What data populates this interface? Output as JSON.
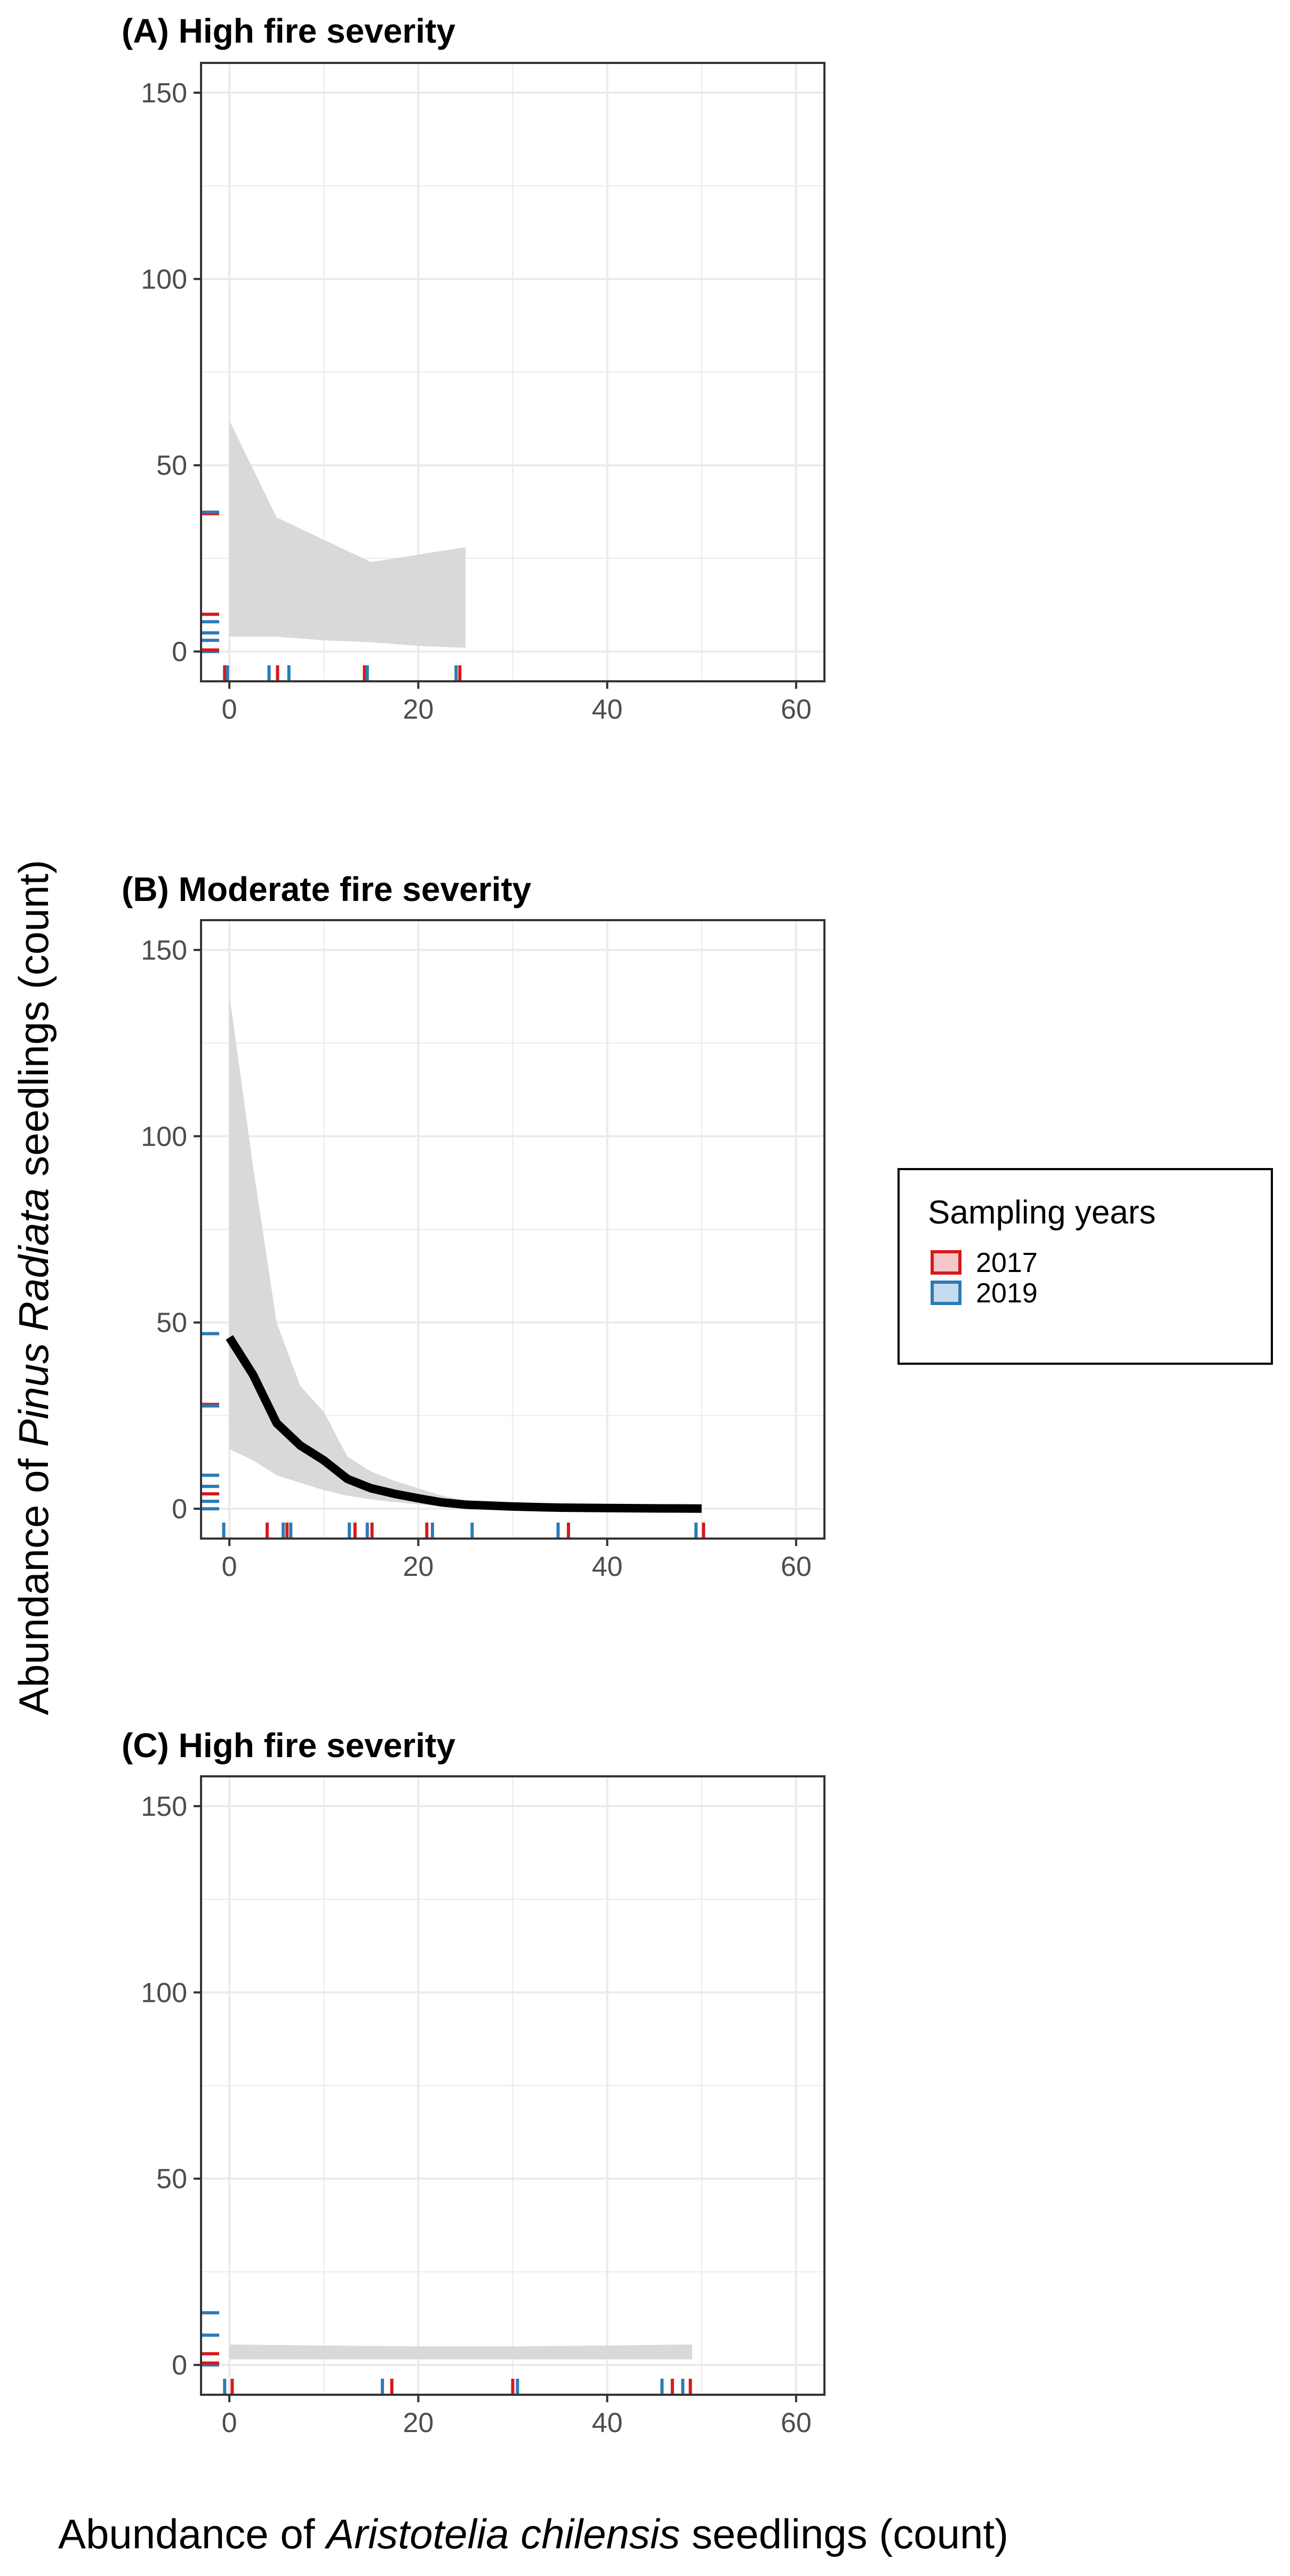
{
  "chart_data": {
    "type": "line",
    "y_axis_label": {
      "prefix": "Abundance of ",
      "italic": "Pinus Radiata",
      "suffix": " seedlings (count)"
    },
    "x_axis_label": {
      "prefix": "Abundance of ",
      "italic": "Aristotelia chilensis",
      "suffix": " seedlings (count)"
    },
    "legend": {
      "title": "Sampling years",
      "items": [
        {
          "label": "2017",
          "color": "#d7191c",
          "fill": "#f4c7c8"
        },
        {
          "label": "2019",
          "color": "#2c7bb6",
          "fill": "#c6dbef"
        }
      ]
    },
    "colors": {
      "fit_line": "#000000",
      "ribbon": "#d9d9d9",
      "grid": "#ebebeb",
      "panel_border": "#333333"
    },
    "xlim": [
      -3,
      63
    ],
    "ylim": [
      -8,
      158
    ],
    "x_ticks": [
      0,
      20,
      40,
      60
    ],
    "y_ticks": [
      0,
      50,
      100,
      150
    ],
    "panels": [
      {
        "title": "(A) High fire severity",
        "fit_line": null,
        "ribbon": {
          "x": [
            0,
            5,
            10,
            15,
            20,
            25
          ],
          "lower": [
            4,
            4,
            3,
            2.5,
            1.5,
            1
          ],
          "upper": [
            62,
            36,
            30,
            24,
            26,
            28
          ]
        },
        "rug_x": [
          {
            "x": -0.5,
            "year": "2017"
          },
          {
            "x": -0.2,
            "year": "2019"
          },
          {
            "x": 4.2,
            "year": "2019"
          },
          {
            "x": 5.1,
            "year": "2017"
          },
          {
            "x": 6.3,
            "year": "2019"
          },
          {
            "x": 14.3,
            "year": "2017"
          },
          {
            "x": 14.6,
            "year": "2019"
          },
          {
            "x": 24.0,
            "year": "2019"
          },
          {
            "x": 24.4,
            "year": "2017"
          }
        ],
        "rug_y": [
          {
            "y": 37,
            "year": "2017"
          },
          {
            "y": 37.4,
            "year": "2019"
          },
          {
            "y": 10,
            "year": "2017"
          },
          {
            "y": 8,
            "year": "2019"
          },
          {
            "y": 5,
            "year": "2019"
          },
          {
            "y": 3,
            "year": "2019"
          },
          {
            "y": 0,
            "year": "2019"
          },
          {
            "y": 0.4,
            "year": "2017"
          }
        ]
      },
      {
        "title": "(B) Moderate fire severity",
        "fit_line": {
          "x": [
            0,
            2.5,
            5,
            7.5,
            10,
            12.5,
            15,
            17.5,
            20,
            22.5,
            25,
            30,
            35,
            40,
            45,
            50
          ],
          "y": [
            46,
            36,
            23,
            17,
            13,
            8,
            5.5,
            4,
            2.8,
            1.7,
            1.1,
            0.6,
            0.3,
            0.2,
            0.1,
            0.05
          ]
        },
        "ribbon": {
          "x": [
            0,
            2.5,
            5,
            7.5,
            10,
            12.5,
            15,
            17.5,
            20,
            22.5,
            25,
            30,
            35,
            40,
            45,
            50
          ],
          "lower": [
            16,
            13,
            9,
            7,
            5,
            3.5,
            2.5,
            1.8,
            1.2,
            0.7,
            0.4,
            0.2,
            0.1,
            0.05,
            0.02,
            0
          ],
          "upper": [
            138,
            92,
            50,
            33,
            26,
            14,
            10,
            7.5,
            5.5,
            3.5,
            2.2,
            1.2,
            0.7,
            0.4,
            0.25,
            0.15
          ]
        },
        "rug_x": [
          {
            "x": -0.6,
            "year": "2019"
          },
          {
            "x": 4.0,
            "year": "2017"
          },
          {
            "x": 5.7,
            "year": "2019"
          },
          {
            "x": 6.1,
            "year": "2017"
          },
          {
            "x": 6.5,
            "year": "2019"
          },
          {
            "x": 12.7,
            "year": "2019"
          },
          {
            "x": 13.3,
            "year": "2017"
          },
          {
            "x": 14.6,
            "year": "2019"
          },
          {
            "x": 15.1,
            "year": "2017"
          },
          {
            "x": 20.9,
            "year": "2017"
          },
          {
            "x": 21.5,
            "year": "2019"
          },
          {
            "x": 25.7,
            "year": "2019"
          },
          {
            "x": 34.8,
            "year": "2019"
          },
          {
            "x": 35.9,
            "year": "2017"
          },
          {
            "x": 49.4,
            "year": "2019"
          },
          {
            "x": 50.2,
            "year": "2017"
          }
        ],
        "rug_y": [
          {
            "y": 47,
            "year": "2019"
          },
          {
            "y": 28,
            "year": "2017"
          },
          {
            "y": 27.6,
            "year": "2019"
          },
          {
            "y": 9,
            "year": "2019"
          },
          {
            "y": 6,
            "year": "2019"
          },
          {
            "y": 4,
            "year": "2017"
          },
          {
            "y": 2,
            "year": "2019"
          },
          {
            "y": 0,
            "year": "2019"
          }
        ]
      },
      {
        "title": "(C) High fire severity",
        "fit_line": null,
        "ribbon": {
          "x": [
            0,
            10,
            20,
            30,
            40,
            49
          ],
          "lower": [
            1.5,
            1.5,
            1.5,
            1.5,
            1.5,
            1.5
          ],
          "upper": [
            5.5,
            5.2,
            5.0,
            5.0,
            5.2,
            5.5
          ]
        },
        "rug_x": [
          {
            "x": -0.5,
            "year": "2019"
          },
          {
            "x": 0.3,
            "year": "2017"
          },
          {
            "x": 16.2,
            "year": "2019"
          },
          {
            "x": 17.2,
            "year": "2017"
          },
          {
            "x": 30.0,
            "year": "2017"
          },
          {
            "x": 30.5,
            "year": "2019"
          },
          {
            "x": 45.8,
            "year": "2019"
          },
          {
            "x": 46.9,
            "year": "2017"
          },
          {
            "x": 48.0,
            "year": "2019"
          },
          {
            "x": 48.8,
            "year": "2017"
          }
        ],
        "rug_y": [
          {
            "y": 14,
            "year": "2019"
          },
          {
            "y": 8,
            "year": "2019"
          },
          {
            "y": 3,
            "year": "2017"
          },
          {
            "y": 0,
            "year": "2019"
          },
          {
            "y": 0.5,
            "year": "2017"
          }
        ]
      }
    ]
  }
}
